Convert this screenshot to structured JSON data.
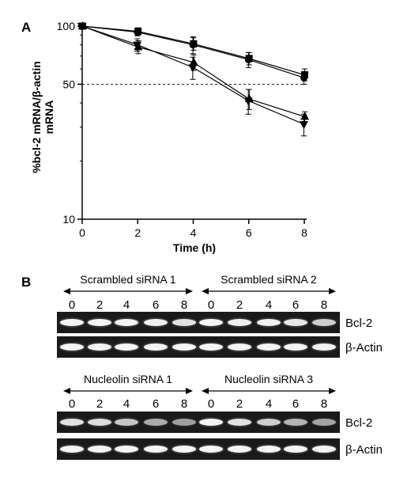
{
  "panel_a_label": "A",
  "panel_b_label": "B",
  "chart_data": {
    "type": "line",
    "title": "",
    "xlabel": "Time (h)",
    "ylabel_line1": "%bcl-2 mRNA/β-actin",
    "ylabel_line2": "mRNA",
    "x": [
      0,
      2,
      4,
      6,
      8
    ],
    "x_ticks": [
      "0",
      "2",
      "4",
      "6",
      "8"
    ],
    "y_ticks": [
      "100",
      "50",
      "10"
    ],
    "y_scale": "log",
    "ylim": [
      10,
      100
    ],
    "xlim": [
      0,
      8
    ],
    "reference_line": {
      "y": 50,
      "style": "dashed"
    },
    "grid": false,
    "legend": "none",
    "series": [
      {
        "marker": "square",
        "values": [
          100,
          94,
          81,
          68,
          56
        ],
        "errors": [
          0,
          4,
          6,
          5,
          4
        ]
      },
      {
        "marker": "circle",
        "values": [
          100,
          93,
          80,
          67,
          54
        ],
        "errors": [
          0,
          4,
          8,
          6,
          4
        ]
      },
      {
        "marker": "triangle-up",
        "values": [
          100,
          78,
          65,
          42,
          34
        ],
        "errors": [
          0,
          6,
          6,
          5,
          2
        ]
      },
      {
        "marker": "triangle-down",
        "values": [
          100,
          80,
          61,
          41,
          31
        ],
        "errors": [
          0,
          6,
          8,
          6,
          4
        ]
      }
    ]
  },
  "gel": {
    "groups": [
      {
        "label": "Scrambled siRNA 1",
        "lanes": [
          "0",
          "2",
          "4",
          "6",
          "8"
        ]
      },
      {
        "label": "Scrambled siRNA 2",
        "lanes": [
          "0",
          "2",
          "4",
          "6",
          "8"
        ]
      },
      {
        "label": "Nucleolin siRNA 1",
        "lanes": [
          "0",
          "2",
          "4",
          "6",
          "8"
        ]
      },
      {
        "label": "Nucleolin siRNA 3",
        "lanes": [
          "0",
          "2",
          "4",
          "6",
          "8"
        ]
      }
    ],
    "band_labels": [
      "Bcl-2",
      "β-Actin",
      "Bcl-2",
      "β-Actin"
    ],
    "band_intensity": {
      "top_bcl2": [
        1,
        1,
        1,
        0.95,
        0.85,
        1,
        0.95,
        0.95,
        0.9,
        0.7
      ],
      "top_actin": [
        1,
        1,
        1,
        1,
        1,
        1,
        1,
        1,
        1,
        1
      ],
      "bottom_bcl2": [
        0.85,
        0.8,
        0.65,
        0.45,
        0.35,
        1,
        0.85,
        0.7,
        0.5,
        0.4
      ],
      "bottom_actin": [
        1,
        1,
        1,
        1,
        1,
        1,
        1,
        1,
        1,
        1
      ]
    }
  }
}
